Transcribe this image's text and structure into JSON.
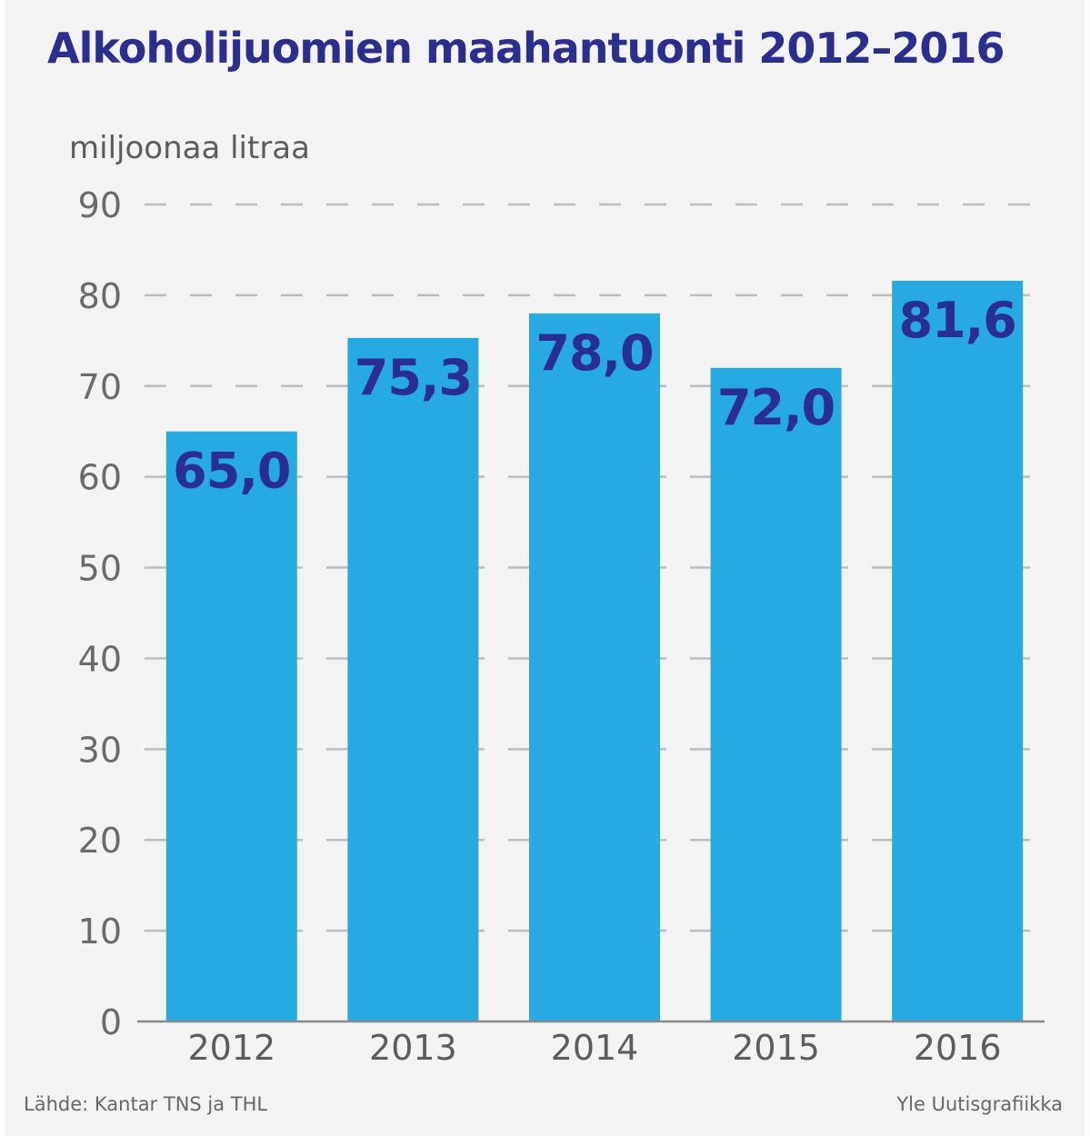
{
  "chart_data": {
    "type": "bar",
    "title": "Alkoholijuomien maahantuonti 2012–2016",
    "ylabel": "miljoonaa litraa",
    "xlabel": "",
    "categories": [
      "2012",
      "2013",
      "2014",
      "2015",
      "2016"
    ],
    "values": [
      65.0,
      75.3,
      78.0,
      72.0,
      81.6
    ],
    "value_labels": [
      "65,0",
      "75,3",
      "78,0",
      "72,0",
      "81,6"
    ],
    "ylim": [
      0,
      90
    ],
    "yticks": [
      0,
      10,
      20,
      30,
      40,
      50,
      60,
      70,
      80,
      90
    ],
    "grid": "dashed horizontal",
    "legend": "none",
    "bar_color": "#27a9e1",
    "label_color": "#2a2f8f"
  },
  "source": "Lähde: Kantar TNS ja THL",
  "credit": "Yle Uutisgrafiikka"
}
